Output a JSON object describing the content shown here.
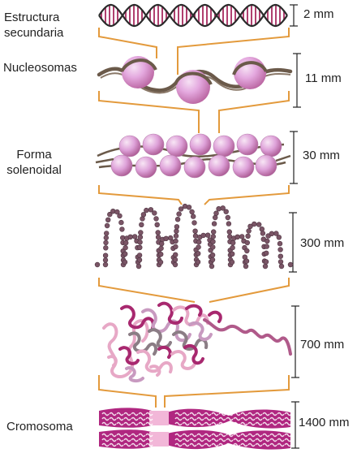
{
  "labels": {
    "secondary": [
      "Estructura",
      "secundaria"
    ],
    "nucleosomes": "Nucleosomas",
    "solenoid": [
      "Forma",
      "solenoidal"
    ],
    "chromosome": "Cromosoma"
  },
  "dimensions": {
    "d1": "2 mm",
    "d2": "11 mm",
    "d3": "30 mm",
    "d4": "300 mm",
    "d5": "700 mm",
    "d6": "1400 mm"
  },
  "colors": {
    "connector": "#e39a3c",
    "dna_strand": "#2b2b2b",
    "dna_rung": "#b0406f",
    "nucleosome": "#d68bcf",
    "nucleosome_highlight": "#f6e1f4",
    "fiber": "#6b5a4a",
    "bead": "#7a5566",
    "chromatin_magenta": "#a8286f",
    "chromatin_pink": "#e7a8c6",
    "chromatin_gray": "#8b7d85",
    "chromosome": "#b02780",
    "centromere": "#f2b7d8"
  }
}
